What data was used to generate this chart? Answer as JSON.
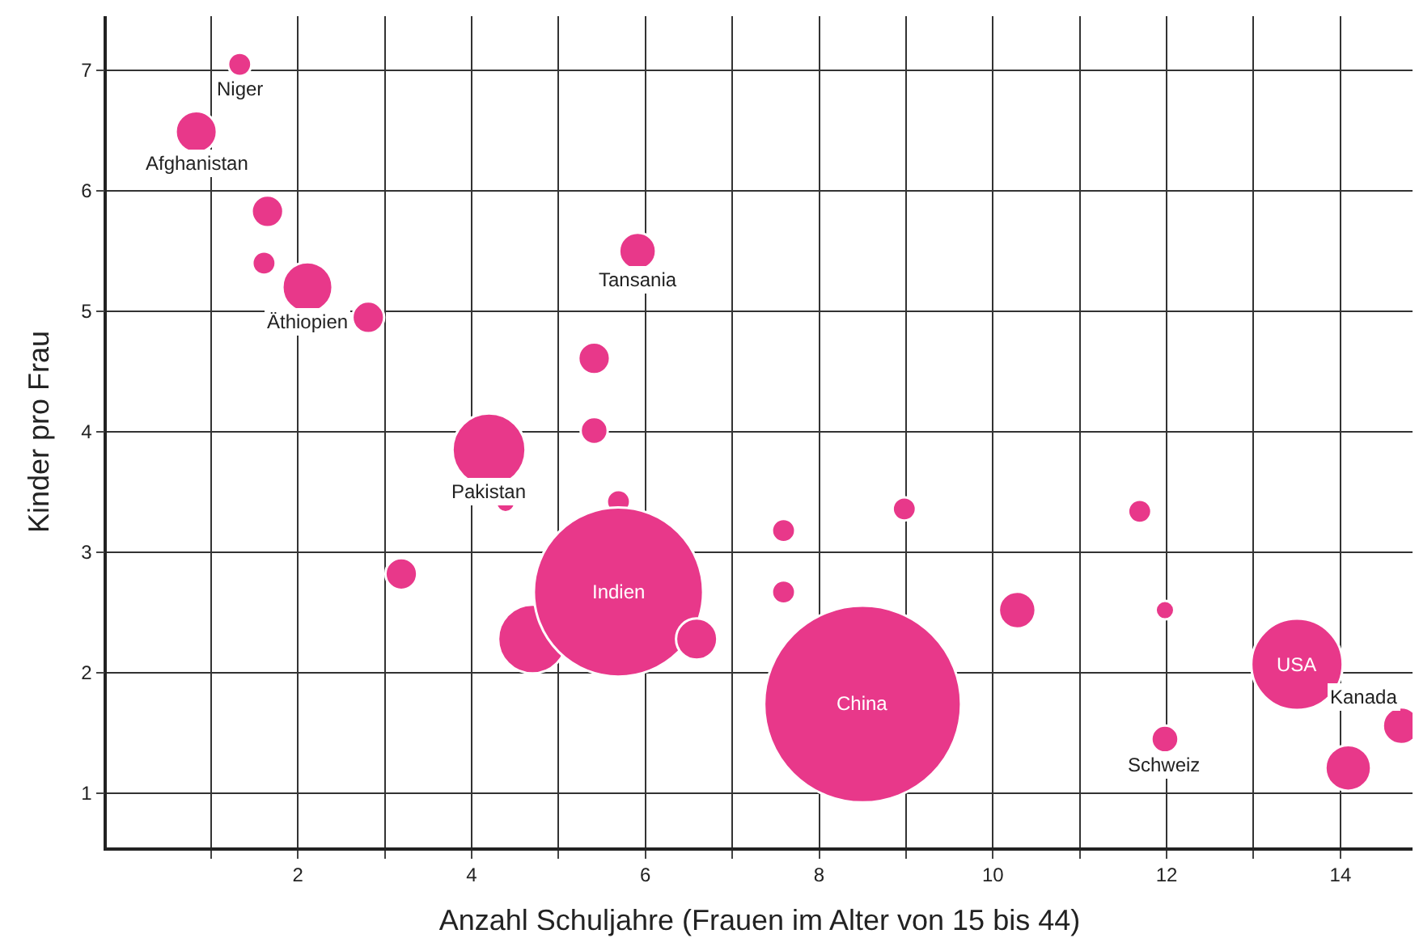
{
  "chart_data": {
    "type": "bubble",
    "xlabel": "Anzahl Schuljahre (Frauen im Alter von 15 bis 44)",
    "ylabel": "Kinder pro Frau",
    "xlim": [
      -0.2,
      14.83
    ],
    "ylim": [
      0.55,
      7.45
    ],
    "xticks": [
      {
        "value": 1,
        "label": null
      },
      2,
      {
        "value": 3,
        "label": null
      },
      4,
      {
        "value": 5,
        "label": null
      },
      6,
      {
        "value": 7,
        "label": null
      },
      8,
      {
        "value": 9,
        "label": null
      },
      10,
      {
        "value": 11,
        "label": null
      },
      12,
      {
        "value": 13,
        "label": null
      },
      14
    ],
    "yticks": [
      1,
      2,
      3,
      4,
      5,
      6,
      7
    ],
    "grid": true,
    "series": [
      {
        "color": "#e8388a",
        "x": [
          1.33,
          0.83,
          1.65,
          1.61,
          2.11,
          2.81,
          5.91,
          5.41,
          5.41,
          4.2,
          4.39,
          5.69,
          3.19,
          4.7,
          5.69,
          6.59,
          7.59,
          7.59,
          8.98,
          8.5,
          10.28,
          11.69,
          11.98,
          13.5,
          11.98,
          14.09,
          14.7
        ],
        "values": [
          7.05,
          6.49,
          5.83,
          5.4,
          5.2,
          4.95,
          5.5,
          4.61,
          4.01,
          3.85,
          3.41,
          3.42,
          2.82,
          2.28,
          2.67,
          2.28,
          3.18,
          2.67,
          3.36,
          1.74,
          2.52,
          3.34,
          2.52,
          2.07,
          1.45,
          1.21,
          1.56
        ],
        "sizes": [
          0.014,
          0.044,
          0.026,
          0.014,
          0.065,
          0.026,
          0.035,
          0.026,
          0.019,
          0.138,
          0.009,
          0.014,
          0.026,
          0.122,
          0.74,
          0.044,
          0.014,
          0.014,
          0.014,
          1,
          0.035,
          0.014,
          0.009,
          0.216,
          0.019,
          0.054,
          0.035
        ]
      }
    ],
    "annotations": [
      {
        "text": "Niger",
        "x": 1.33,
        "y": 7.05
      },
      {
        "text": "Afghanistan",
        "x": 0.83,
        "y": 6.49
      },
      {
        "text": "Äthiopien",
        "x": 2.11,
        "y": 5.2
      },
      {
        "text": "Tansania",
        "x": 5.91,
        "y": 5.5
      },
      {
        "text": "Pakistan",
        "x": 4.2,
        "y": 3.85
      },
      {
        "text": "Indien",
        "x": 5.69,
        "y": 2.67
      },
      {
        "text": "China",
        "x": 8.5,
        "y": 1.74
      },
      {
        "text": "USA",
        "x": 13.5,
        "y": 2.07
      },
      {
        "text": "Schweiz",
        "x": 11.98,
        "y": 1.45
      },
      {
        "text": "Kanada",
        "x": 14.7,
        "y": 1.56
      }
    ]
  }
}
